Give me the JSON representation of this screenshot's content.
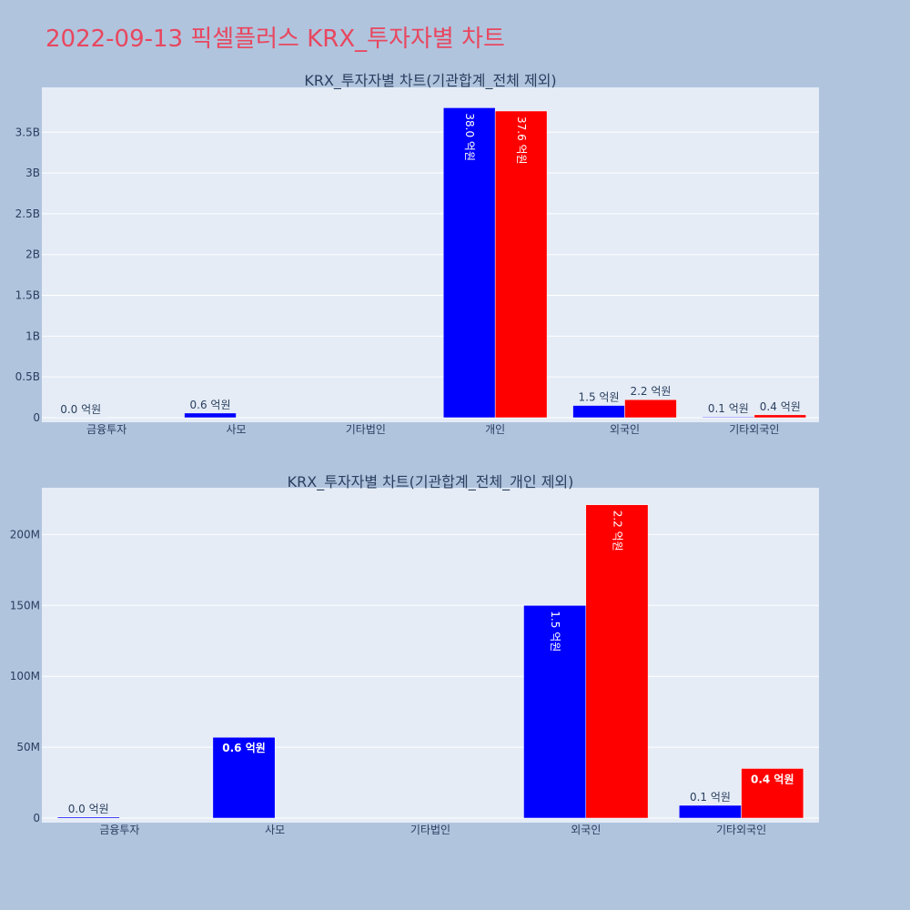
{
  "title": "2022-09-13 픽셀플러스 KRX_투자자별 차트",
  "colors": {
    "background": "#b0c4de",
    "plot_bg": "#e5ecf6",
    "title": "#e8475f",
    "series_a": "#0000ff",
    "series_b": "#ff0000"
  },
  "chart_data": [
    {
      "type": "bar",
      "title": "KRX_투자자별 차트(기관합계_전체 제외)",
      "categories": [
        "금융투자",
        "사모",
        "기타법인",
        "개인",
        "외국인",
        "기타외국인"
      ],
      "ylim": [
        0,
        4050000000
      ],
      "yticks": [
        0,
        500000000,
        1000000000,
        1500000000,
        2000000000,
        2500000000,
        3000000000,
        3500000000
      ],
      "yticklabels": [
        "0",
        "0.5B",
        "1B",
        "1.5B",
        "2B",
        "2.5B",
        "3B",
        "3.5B"
      ],
      "grid": true,
      "series": [
        {
          "color": "#0000ff",
          "values": [
            800000,
            57000000,
            0,
            3800000000,
            150000000,
            9000000
          ],
          "labels": [
            "0.0 억원",
            "0.6 억원",
            "",
            "38.0 억원",
            "1.5 억원",
            "0.1 억원"
          ]
        },
        {
          "color": "#ff0000",
          "values": [
            0,
            0,
            0,
            3760000000,
            221000000,
            35000000
          ],
          "labels": [
            "",
            "",
            "",
            "37.6 억원",
            "2.2 억원",
            "0.4 억원"
          ]
        }
      ]
    },
    {
      "type": "bar",
      "title": "KRX_투자자별 차트(기관합계_전체_개인 제외)",
      "categories": [
        "금융투자",
        "사모",
        "기타법인",
        "외국인",
        "기타외국인"
      ],
      "ylim": [
        0,
        233000000
      ],
      "yticks": [
        0,
        50000000,
        100000000,
        150000000,
        200000000
      ],
      "yticklabels": [
        "0",
        "50M",
        "100M",
        "150M",
        "200M"
      ],
      "grid": true,
      "series": [
        {
          "color": "#0000ff",
          "values": [
            800000,
            57000000,
            0,
            150000000,
            9000000
          ],
          "labels": [
            "0.0 억원",
            "0.6 억원",
            "",
            "1.5 억원",
            "0.1 억원"
          ]
        },
        {
          "color": "#ff0000",
          "values": [
            0,
            0,
            0,
            221000000,
            35000000
          ],
          "labels": [
            "",
            "",
            "",
            "2.2 억원",
            "0.4 억원"
          ]
        }
      ]
    }
  ]
}
